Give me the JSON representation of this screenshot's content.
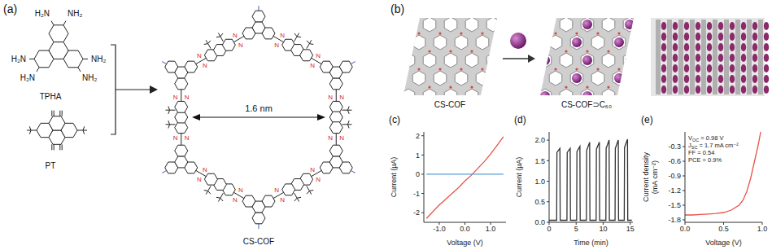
{
  "panels": {
    "a": {
      "letter": "(a)",
      "monomer1": {
        "name": "TPHA",
        "substituents": [
          "H₂N",
          "NH₂",
          "NH₂",
          "NH₂",
          "H₂N",
          "H₂N"
        ]
      },
      "monomer2": {
        "name": "PT"
      },
      "product": {
        "name": "CS-COF",
        "atom_label": "N",
        "pore_size": "1.6 nm"
      }
    },
    "b": {
      "letter": "(b)",
      "labels": [
        "CS-COF",
        "CS-COF⊃C₆₀"
      ]
    },
    "c": {
      "letter": "(c)"
    },
    "d": {
      "letter": "(d)"
    },
    "e": {
      "letter": "(e)"
    }
  },
  "chart_data": [
    {
      "type": "line",
      "x_label": "Voltage (V)",
      "y_label": "Current (µA)",
      "xlim": [
        -1.6,
        1.6
      ],
      "xticks": [
        {
          "value": -1,
          "label": "-1.0"
        },
        {
          "value": 0,
          "label": "0.0"
        },
        {
          "value": 1,
          "label": "1.0"
        }
      ],
      "ylim": [
        -2.5,
        2.2
      ],
      "yticks": [
        -2,
        -1,
        0,
        1,
        2
      ],
      "series": [
        {
          "color": "#e8534a",
          "x": [
            -1.5,
            -1.25,
            -1.0,
            -0.75,
            -0.5,
            -0.25,
            0,
            0.25,
            0.5,
            0.75,
            1.0,
            1.25,
            1.5
          ],
          "values": [
            -2.3,
            -1.95,
            -1.6,
            -1.3,
            -1.0,
            -0.7,
            -0.35,
            -0.05,
            0.3,
            0.65,
            1.05,
            1.5,
            1.95
          ]
        },
        {
          "color": "#5b9bd5",
          "x": [
            -1.5,
            1.5
          ],
          "values": [
            0,
            0
          ]
        }
      ]
    },
    {
      "type": "line",
      "x_label": "Time (min)",
      "y_label": "Current (µA)",
      "xlim": [
        0,
        15.5
      ],
      "xticks": [
        0,
        5,
        10,
        15
      ],
      "ylim": [
        0,
        2.2
      ],
      "yticks": [
        {
          "value": 0,
          "label": "0.0"
        },
        0.5,
        {
          "value": 1,
          "label": "1.0"
        },
        1.5,
        {
          "value": 2,
          "label": "2.0"
        }
      ],
      "series": [
        {
          "color": "#333333",
          "x": [
            0,
            1.4,
            1.45,
            2.0,
            2.05,
            3.3,
            3.35,
            3.9,
            3.95,
            5.1,
            5.15,
            5.7,
            5.75,
            6.9,
            6.95,
            7.5,
            7.55,
            8.7,
            8.75,
            9.3,
            9.35,
            10.5,
            10.55,
            11.1,
            11.15,
            12.2,
            12.25,
            12.8,
            12.85,
            13.9,
            13.95,
            14.5,
            14.55,
            15.3
          ],
          "values": [
            0.05,
            0.05,
            1.7,
            1.8,
            0.05,
            0.05,
            1.7,
            1.8,
            0.05,
            0.05,
            1.72,
            1.85,
            0.05,
            0.05,
            1.75,
            1.95,
            0.05,
            0.05,
            1.78,
            1.95,
            0.05,
            0.05,
            1.8,
            2.0,
            0.05,
            0.05,
            1.8,
            2.0,
            0.05,
            0.05,
            1.82,
            2.02,
            0.05,
            0.05
          ]
        }
      ]
    },
    {
      "type": "line",
      "x_label": "Voltage (V)",
      "y_label": "Current density (mA cm⁻²)",
      "xlim": [
        0,
        1.0
      ],
      "xticks": [
        {
          "value": 0,
          "label": "0.0"
        },
        0.5,
        {
          "value": 1,
          "label": "1.0"
        }
      ],
      "ylim": [
        -1.85,
        0
      ],
      "yticks": [
        -0.3,
        -0.6,
        -0.9,
        -1.2,
        -1.5,
        -1.8
      ],
      "series": [
        {
          "color": "#e8534a",
          "x": [
            0,
            0.1,
            0.2,
            0.3,
            0.4,
            0.5,
            0.6,
            0.7,
            0.75,
            0.8,
            0.85,
            0.9,
            0.95,
            0.98
          ],
          "values": [
            -1.7,
            -1.7,
            -1.69,
            -1.68,
            -1.67,
            -1.65,
            -1.6,
            -1.5,
            -1.4,
            -1.22,
            -0.95,
            -0.6,
            -0.25,
            0
          ]
        }
      ],
      "annotations": [
        {
          "main": "V",
          "sub": "OC",
          "rest": " = 0.98 V"
        },
        {
          "main": "J",
          "sub": "SC",
          "rest": " = 1.7 mA cm⁻²"
        },
        {
          "main": "FF = 0.54"
        },
        {
          "main": "PCE = 0.9%"
        }
      ]
    }
  ]
}
